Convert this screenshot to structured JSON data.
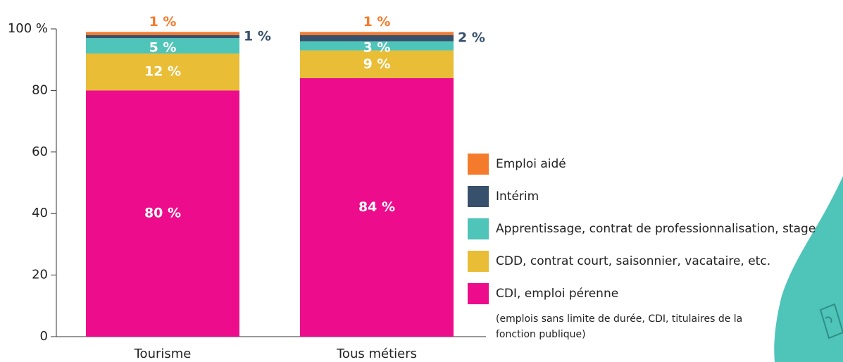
{
  "chart_data": {
    "type": "stacked-bar",
    "categories": [
      "Tourisme",
      "Tous métiers"
    ],
    "series": [
      {
        "name": "CDI, emploi pérenne",
        "color": "#ec0c8c",
        "values": [
          80,
          84
        ],
        "value_labels": [
          "80 %",
          "84 %"
        ]
      },
      {
        "name": "CDD, contrat court, saisonnier, vacataire, etc.",
        "color": "#e9bd35",
        "values": [
          12,
          9
        ],
        "value_labels": [
          "12 %",
          "9 %"
        ]
      },
      {
        "name": "Apprentissage, contrat de professionnalisation, stage",
        "color": "#4fc4b9",
        "values": [
          5,
          3
        ],
        "value_labels": [
          "5 %",
          "3 %"
        ]
      },
      {
        "name": "Intérim",
        "color": "#37506c",
        "values": [
          1,
          2
        ],
        "value_labels": [
          "1 %",
          "2 %"
        ]
      },
      {
        "name": "Emploi aidé",
        "color": "#f57b2c",
        "values": [
          1,
          1
        ],
        "value_labels": [
          "1 %",
          "1 %"
        ]
      }
    ],
    "legend_note": "(emplois sans limite de durée, CDI, titulaires de la fonction publique)",
    "ylim": [
      0,
      100
    ],
    "yticks": [
      0,
      20,
      40,
      60,
      80,
      {
        "value": 100,
        "label": "100 %"
      }
    ]
  }
}
